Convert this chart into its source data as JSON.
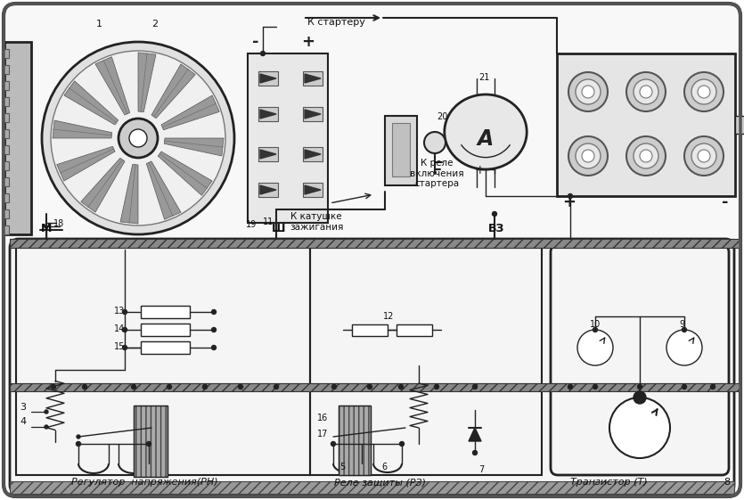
{
  "bg_color": "#ffffff",
  "border_color": "#222222",
  "text_color": "#111111",
  "labels": {
    "reg_voltage": "Регулятор  напряжения(РН)",
    "relay_protect": "Реле защиты (РЗ)",
    "transistor": "Транзистор (Т)",
    "to_ignition_coil": "К катушке\nзажигания",
    "to_relay": "К реле\nвключения\nстартера",
    "to_starter": "К стартеру",
    "M": "М",
    "Sh": "Ш",
    "VZ": "ВЗ",
    "num1": "1",
    "num2": "2",
    "num3": "3",
    "num4": "4",
    "num5": "5",
    "num6": "6",
    "num7": "7",
    "num8": "8",
    "num9": "9",
    "num10": "10",
    "num11": "11",
    "num12": "12",
    "num13": "13",
    "num14": "14",
    "num15": "15",
    "num16": "16",
    "num17": "17",
    "num18": "18",
    "num19": "19",
    "num20": "20",
    "num21": "21"
  },
  "figsize": [
    8.35,
    5.61
  ],
  "dpi": 100
}
